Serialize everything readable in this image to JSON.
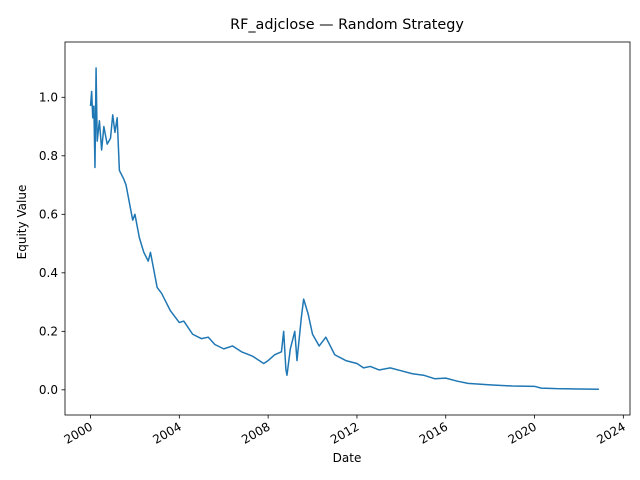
{
  "chart_data": {
    "type": "line",
    "title": "RF_adjclose — Random Strategy",
    "x_label": "Date",
    "y_label": "Equity Value",
    "x": [
      2000.0,
      2000.05,
      2000.1,
      2000.15,
      2000.2,
      2000.25,
      2000.3,
      2000.4,
      2000.5,
      2000.6,
      2000.75,
      2000.9,
      2001.0,
      2001.1,
      2001.2,
      2001.3,
      2001.5,
      2001.6,
      2001.8,
      2001.9,
      2002.0,
      2002.2,
      2002.4,
      2002.6,
      2002.7,
      2002.8,
      2003.0,
      2003.2,
      2003.4,
      2003.6,
      2004.0,
      2004.2,
      2004.6,
      2005.0,
      2005.3,
      2005.6,
      2006.0,
      2006.4,
      2006.8,
      2007.3,
      2007.8,
      2008.0,
      2008.3,
      2008.6,
      2008.7,
      2008.8,
      2008.85,
      2009.0,
      2009.2,
      2009.3,
      2009.5,
      2009.6,
      2009.8,
      2010.0,
      2010.3,
      2010.6,
      2010.8,
      2011.0,
      2011.5,
      2012.0,
      2012.3,
      2012.6,
      2013.0,
      2013.5,
      2014.0,
      2014.5,
      2015.0,
      2015.5,
      2016.0,
      2016.5,
      2017.0,
      2018.0,
      2019.0,
      2020.0,
      2020.3,
      2021.0,
      2022.0,
      2022.9
    ],
    "series": [
      {
        "name": "RF_adjclose",
        "color": "#1f77b4",
        "values": [
          0.97,
          1.02,
          0.93,
          0.97,
          0.76,
          1.1,
          0.85,
          0.92,
          0.82,
          0.9,
          0.84,
          0.86,
          0.94,
          0.88,
          0.93,
          0.75,
          0.72,
          0.7,
          0.62,
          0.58,
          0.6,
          0.52,
          0.47,
          0.44,
          0.47,
          0.43,
          0.35,
          0.33,
          0.3,
          0.27,
          0.23,
          0.235,
          0.19,
          0.175,
          0.18,
          0.155,
          0.14,
          0.15,
          0.13,
          0.115,
          0.09,
          0.1,
          0.12,
          0.13,
          0.2,
          0.07,
          0.05,
          0.14,
          0.2,
          0.1,
          0.25,
          0.31,
          0.26,
          0.19,
          0.15,
          0.18,
          0.15,
          0.12,
          0.1,
          0.09,
          0.075,
          0.08,
          0.068,
          0.075,
          0.065,
          0.055,
          0.05,
          0.038,
          0.04,
          0.03,
          0.022,
          0.017,
          0.013,
          0.012,
          0.006,
          0.004,
          0.003,
          0.002
        ]
      }
    ],
    "xlim": [
      1998.85,
      2024.3
    ],
    "xticks": [
      2000,
      2004,
      2008,
      2012,
      2016,
      2020,
      2024
    ],
    "ylim": [
      -0.086,
      1.189
    ],
    "yticks": [
      {
        "value": 0,
        "label": "0.0"
      },
      {
        "value": 0.2,
        "label": "0.2"
      },
      {
        "value": 0.4,
        "label": "0.4"
      },
      {
        "value": 0.6,
        "label": "0.6"
      },
      {
        "value": 0.8,
        "label": "0.8"
      },
      {
        "value": 1,
        "label": "1.0"
      }
    ],
    "grid": false
  }
}
